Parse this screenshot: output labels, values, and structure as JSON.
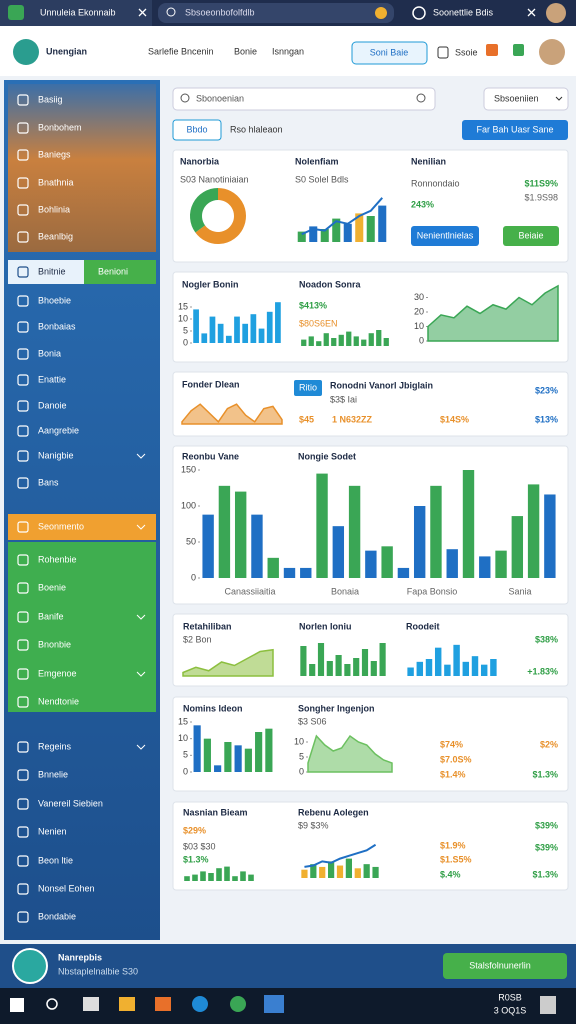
{
  "browser": {
    "tab": "Unnuleia Ekonnaib",
    "address": "Sbsoeonbofolfdlb",
    "profile": "Soonettlie Bdis"
  },
  "header": {
    "brand": "Unengian",
    "nav": [
      "Sarlefie Bncenin",
      "Bonie",
      "Isnngan"
    ],
    "button": "Soni Baie",
    "icon_label": "Ssoie"
  },
  "sidebar": {
    "top": [
      "Basiig",
      "Bonbohem",
      "Baniegs",
      "Bnathnia",
      "Bohlinia",
      "Beanlbig"
    ],
    "tabs": [
      "Bnitnie",
      "Benioni"
    ],
    "middle": [
      "Bhoebie",
      "Bonbaias",
      "Bonia",
      "Enattie",
      "Danoie",
      "Aangrebie",
      "Nanigbie",
      "Bans"
    ],
    "section": "Seonmento",
    "green": [
      "Rohenbie",
      "Boenie",
      "Banife",
      "Bnonbie",
      "Emgenoe",
      "Nendtonie"
    ],
    "bottom": [
      "Regeins",
      "Bnnelie",
      "Vanereil Siebien",
      "Nenien",
      "Beon ltie",
      "Nonsel Eohen",
      "Bondabie"
    ]
  },
  "toolbar": {
    "search": "Sbonoenian",
    "filter": "Sbsoeniien",
    "tabs": [
      "Bbdo",
      "Rso hlaleaon"
    ],
    "action": "Far Bah Uasr Sane"
  },
  "rows": [
    {
      "columns": [
        {
          "title": "Nanorbia",
          "caption": "S03 Nanotiniaian",
          "chart": {
            "type": "pie",
            "values": [
              65,
              35
            ],
            "colors": [
              "#e8902a",
              "#3aa655"
            ]
          }
        },
        {
          "title": "Nolenfiam",
          "caption": "S0 Solel Bdls",
          "chart": {
            "type": "bar",
            "ylim": [
              0,
              100
            ],
            "values": [
              20,
              30,
              25,
              45,
              35,
              55,
              50,
              70
            ],
            "colors": [
              "#3aa655",
              "#1f6fc4",
              "#3aa655",
              "#3aa655",
              "#1f6fc4",
              "#f0b030",
              "#3aa655",
              "#1f6fc4"
            ],
            "line": [
              15,
              25,
              22,
              40,
              35,
              50,
              60,
              85
            ],
            "line_color": "#1f6fc4"
          }
        },
        {
          "title": "Nenilian",
          "caption": "Ronnondaio",
          "kpi": "243%",
          "notes": [
            "$11S9%",
            "$1.9S98"
          ],
          "buttons": [
            "Nenientlnielas",
            "Beiaie"
          ]
        }
      ]
    },
    {
      "columns": [
        {
          "title": "Nogler Bonin",
          "chart": {
            "type": "bar",
            "ylim": [
              0,
              20
            ],
            "yticks": [
              0,
              5,
              10,
              15
            ],
            "values": [
              14,
              4,
              11,
              8,
              3,
              11,
              8,
              12,
              6,
              13,
              17
            ],
            "color": "#1fa0e0"
          }
        },
        {
          "title": "Noadon Sonra",
          "kpi": "$413%",
          "caption": "$80S6EN",
          "chart": {
            "type": "bar",
            "ylim": [
              0,
              10
            ],
            "values": [
              4,
              6,
              3,
              8,
              5,
              7,
              9,
              6,
              4,
              8,
              10,
              5
            ],
            "color": "#3aa655"
          }
        },
        {
          "chart": {
            "type": "area",
            "ylim": [
              0,
              40
            ],
            "yticks": [
              0,
              10,
              20,
              30
            ],
            "values": [
              10,
              18,
              16,
              24,
              19,
              25,
              22,
              30,
              25,
              33,
              38
            ],
            "color": "#3aa655"
          }
        }
      ]
    },
    {
      "columns": [
        {
          "title": "Fonder Dlean",
          "chart": {
            "type": "area",
            "ylim": [
              0,
              10
            ],
            "values": [
              1,
              6,
              9,
              5,
              1,
              7,
              9,
              4,
              1,
              7,
              8,
              2
            ],
            "color": "#e8902a"
          }
        },
        {
          "title": "Ronodni Vanorl Jbiglain",
          "caption": "$3$ Iai",
          "tag": "Ritio",
          "notes": [
            "$45",
            "1 N632ZZ",
            "$14S%"
          ]
        },
        {
          "notes": [
            "$23%",
            "$13%"
          ]
        }
      ]
    },
    {
      "columns": [
        {
          "title": "Reonbu Vane",
          "notes": [
            "Canassiiaitia",
            "Bonaia",
            "Fapa Bonsio",
            "Sania"
          ],
          "chart": {
            "type": "bar",
            "ylim": [
              0,
              150
            ],
            "yticks": [
              0,
              50,
              100,
              150
            ],
            "values": [
              88,
              128,
              120,
              88,
              28,
              14,
              14,
              145,
              72,
              128,
              38,
              44,
              14,
              100,
              128,
              40,
              150,
              30,
              38,
              86,
              130,
              116
            ],
            "colors": [
              "#1f6fc4",
              "#3aa655",
              "#3aa655",
              "#1f6fc4",
              "#3aa655",
              "#1f6fc4",
              "#1f6fc4",
              "#3aa655",
              "#1f6fc4",
              "#3aa655",
              "#1f6fc4",
              "#3aa655",
              "#1f6fc4",
              "#1f6fc4",
              "#3aa655",
              "#1f6fc4",
              "#3aa655",
              "#1f6fc4",
              "#3aa655",
              "#3aa655",
              "#3aa655",
              "#1f6fc4"
            ]
          }
        },
        {
          "title": "Nongie Sodet"
        }
      ]
    },
    {
      "columns": [
        {
          "title": "Retahiliban",
          "caption": "$2 Bon",
          "chart": {
            "type": "area",
            "ylim": [
              0,
              16
            ],
            "values": [
              2,
              5,
              3,
              8,
              6,
              10,
              14,
              15
            ],
            "color": "#8cbf3f"
          }
        },
        {
          "title": "Norlen Ioniu",
          "chart": {
            "type": "bar",
            "ylim": [
              0,
              24
            ],
            "values": [
              20,
              8,
              22,
              10,
              14,
              8,
              12,
              18,
              10,
              22
            ],
            "color": "#3aa655"
          }
        },
        {
          "title": "Roodeit",
          "notes": [
            "$38%",
            "+1.83%"
          ],
          "chart": {
            "type": "bar",
            "ylim": [
              0,
              24
            ],
            "values": [
              6,
              10,
              12,
              20,
              8,
              22,
              10,
              14,
              8,
              12
            ],
            "color": "#1fa0e0"
          }
        }
      ]
    },
    {
      "columns": [
        {
          "title": "Nomins Ideon",
          "chart": {
            "type": "bar",
            "ylim": [
              0,
              15
            ],
            "yticks": [
              0,
              5,
              10,
              15
            ],
            "values": [
              14,
              10,
              2,
              9,
              8,
              7,
              12,
              13
            ],
            "colors": [
              "#1f6fc4",
              "#3aa655",
              "#1f6fc4",
              "#3aa655",
              "#1f6fc4",
              "#3aa655",
              "#3aa655",
              "#3aa655"
            ]
          }
        },
        {
          "title": "Songher Ingenjon",
          "caption": "$3 S06",
          "chart": {
            "type": "area",
            "ylim": [
              0,
              14
            ],
            "yticks": [
              0,
              5,
              10
            ],
            "values": [
              3,
              12,
              9,
              7,
              8,
              12,
              10,
              9,
              6,
              4,
              3
            ],
            "color": "#6cc060"
          }
        },
        {
          "notes": [
            "$74%",
            "$2%",
            "$7.0S%",
            "$1.4%",
            "$1.3%"
          ]
        }
      ]
    },
    {
      "columns": [
        {
          "title": "Nasnian Bieam",
          "kpi": "$29%",
          "caption": "$03 $30",
          "notes": [
            "$1.3%"
          ],
          "chart": {
            "type": "bar",
            "ylim": [
              0,
              10
            ],
            "values": [
              3,
              4,
              6,
              5,
              8,
              9,
              3,
              6,
              4
            ],
            "color": "#3aa655"
          }
        },
        {
          "title": "Rebenu Aolegen",
          "caption": "$9 $3%",
          "chart": {
            "type": "bar",
            "ylim": [
              0,
              26
            ],
            "values": [
              6,
              10,
              8,
              12,
              9,
              14,
              7,
              10,
              8
            ],
            "colors": [
              "#f0b030",
              "#3aa655",
              "#f0b030",
              "#3aa655",
              "#f0b030",
              "#3aa655",
              "#f0b030",
              "#3aa655",
              "#3aa655"
            ],
            "line": [
              8,
              9,
              12,
              11,
              14,
              16,
              18,
              20,
              24
            ],
            "line_color": "#1f6fc4"
          }
        },
        {
          "notes": [
            "$39%",
            "$1.9%",
            "$39%",
            "$1.S5%",
            "$.4%",
            "$1.3%"
          ]
        }
      ]
    }
  ],
  "footer": {
    "name": "Nanrepbis",
    "detail": "Nbstaplelnalbie S30",
    "button": "Stalsfolnunerlin"
  },
  "taskbar": {
    "time": "R0SB",
    "date": "3 OQ1S"
  }
}
